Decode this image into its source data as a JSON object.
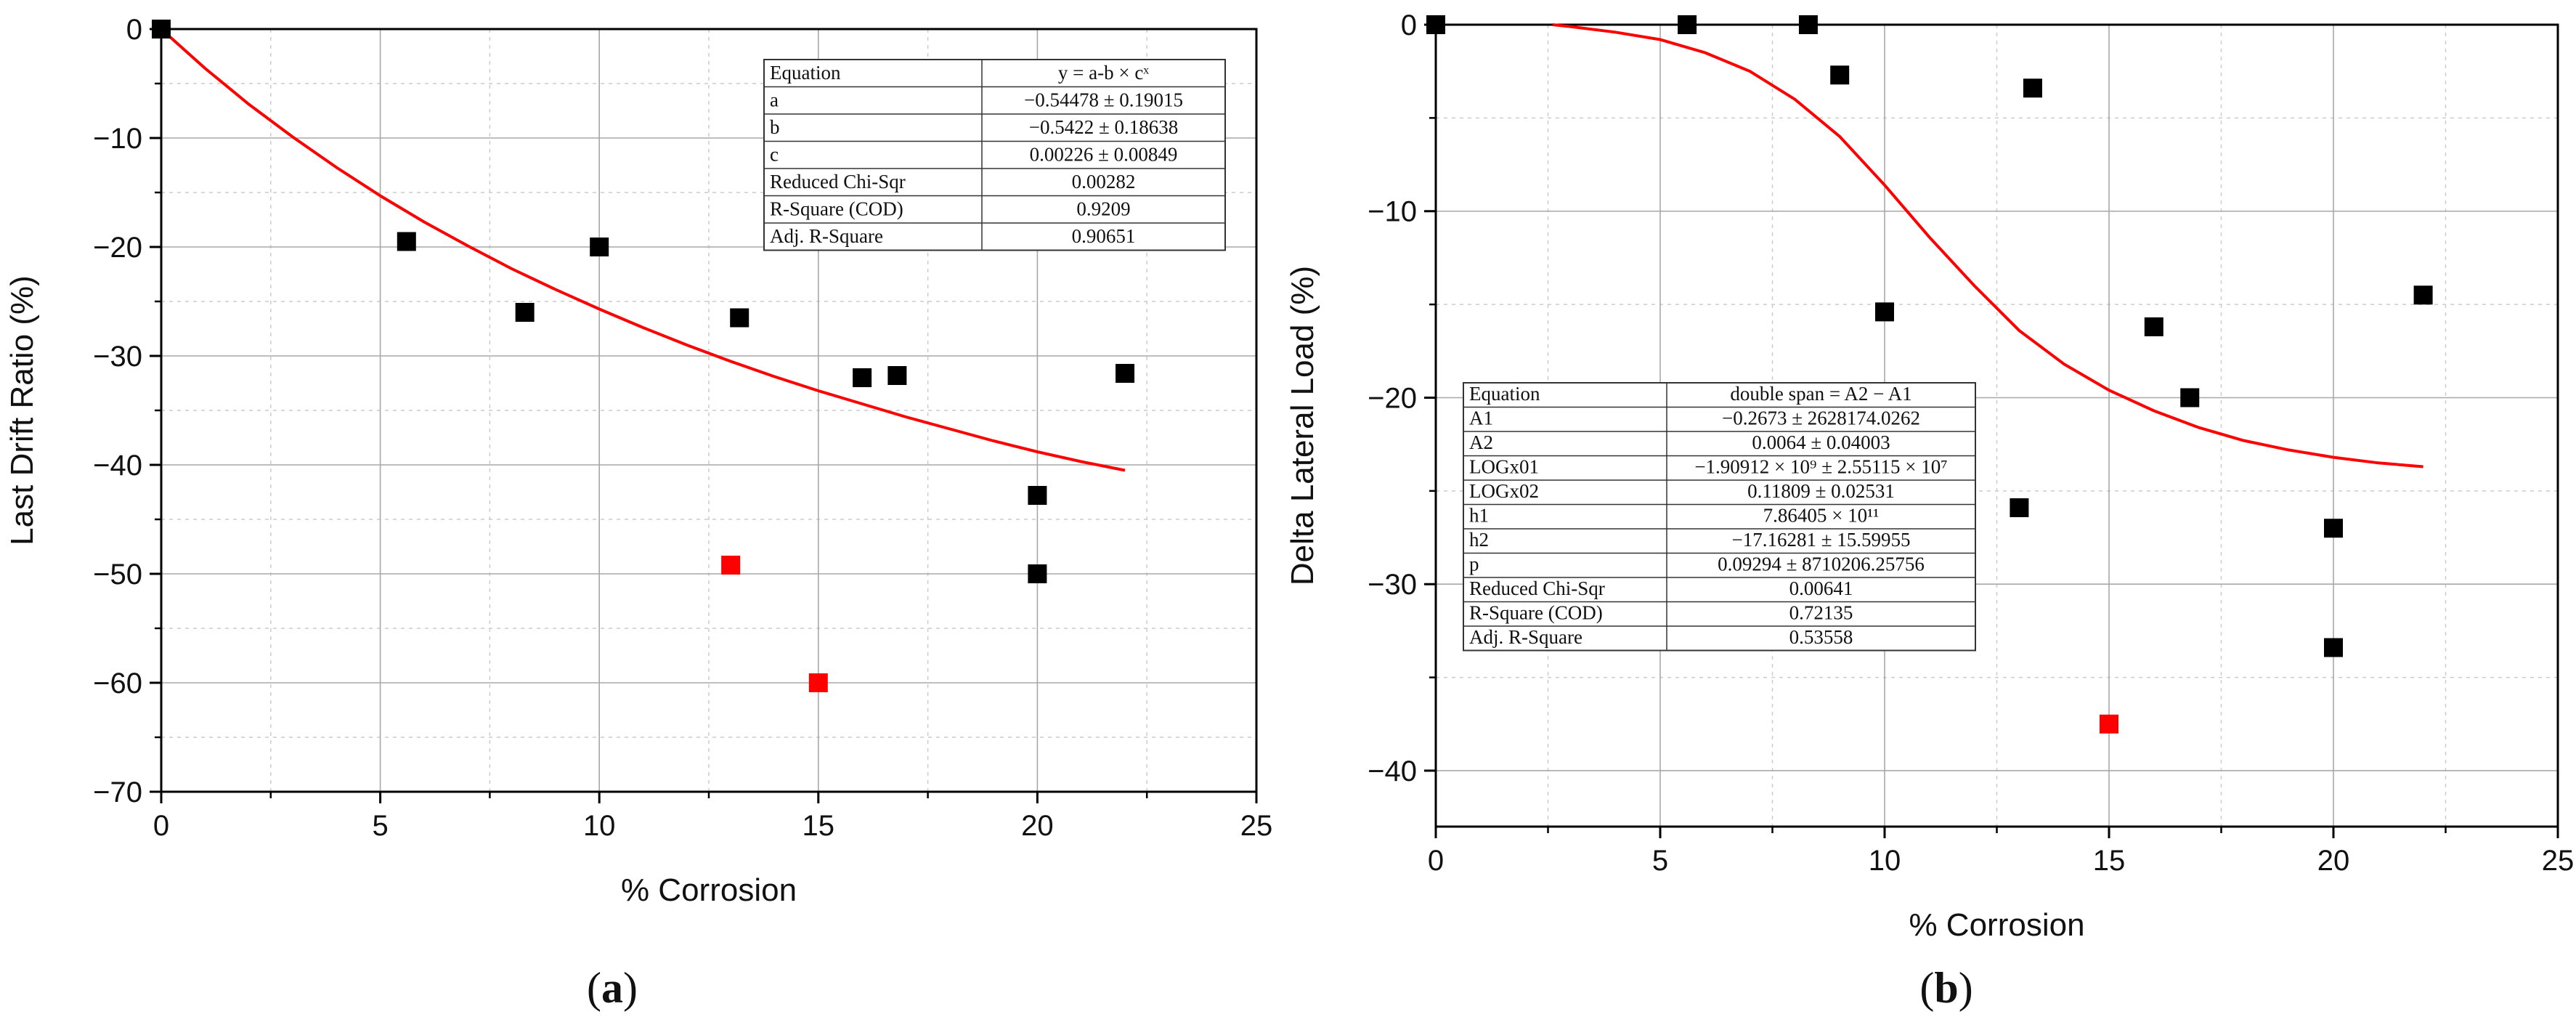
{
  "chart_data": [
    {
      "type": "scatter",
      "panel_label": "a",
      "xlabel": "% Corrosion",
      "ylabel": "Last Drift Ratio (%)",
      "xlim": [
        0,
        25
      ],
      "ylim": [
        -70,
        0
      ],
      "xticks": [
        0,
        5,
        10,
        15,
        20,
        25
      ],
      "yticks": [
        0,
        -10,
        -20,
        -30,
        -40,
        -50,
        -60,
        -70
      ],
      "grid": true,
      "points": [
        {
          "x": 0,
          "y": 0,
          "color": "#000000"
        },
        {
          "x": 5.6,
          "y": -19.5,
          "color": "#000000"
        },
        {
          "x": 8.3,
          "y": -26,
          "color": "#000000"
        },
        {
          "x": 10,
          "y": -20,
          "color": "#000000"
        },
        {
          "x": 13.2,
          "y": -26.5,
          "color": "#000000"
        },
        {
          "x": 16,
          "y": -32,
          "color": "#000000"
        },
        {
          "x": 16.8,
          "y": -31.8,
          "color": "#000000"
        },
        {
          "x": 22,
          "y": -31.6,
          "color": "#000000"
        },
        {
          "x": 20,
          "y": -42.8,
          "color": "#000000"
        },
        {
          "x": 20,
          "y": -50,
          "color": "#000000"
        },
        {
          "x": 13,
          "y": -49.2,
          "color": "#ff0000"
        },
        {
          "x": 15,
          "y": -60,
          "color": "#ff0000"
        }
      ],
      "fit": {
        "color": "#ff0000",
        "x": [
          0,
          1,
          2,
          3,
          4,
          5,
          6,
          7,
          8,
          9,
          10,
          11,
          12,
          13,
          14,
          15,
          16,
          17,
          18,
          19,
          20,
          21,
          22
        ],
        "y": [
          0,
          -3.6,
          -6.9,
          -9.9,
          -12.7,
          -15.3,
          -17.7,
          -19.9,
          -22.0,
          -23.9,
          -25.7,
          -27.4,
          -29.0,
          -30.5,
          -31.9,
          -33.2,
          -34.4,
          -35.6,
          -36.7,
          -37.8,
          -38.8,
          -39.7,
          -40.5
        ]
      },
      "legend_position": "top-right",
      "fit_table": {
        "header": [
          "Equation",
          "y = a-b × cˣ"
        ],
        "rows": [
          [
            "a",
            "−0.54478 ± 0.19015"
          ],
          [
            "b",
            "−0.5422 ± 0.18638"
          ],
          [
            "c",
            "0.00226 ± 0.00849"
          ],
          [
            "Reduced Chi-Sqr",
            "0.00282"
          ],
          [
            "R-Square (COD)",
            "0.9209"
          ],
          [
            "Adj. R-Square",
            "0.90651"
          ]
        ]
      }
    },
    {
      "type": "scatter",
      "panel_label": "b",
      "xlabel": "% Corrosion",
      "ylabel": "Delta Lateral Load (%)",
      "xlim": [
        0,
        25
      ],
      "ylim": [
        -43,
        0
      ],
      "xticks": [
        0,
        5,
        10,
        15,
        20,
        25
      ],
      "yticks": [
        0,
        -10,
        -20,
        -30,
        -40
      ],
      "grid": true,
      "points": [
        {
          "x": 0,
          "y": 0,
          "color": "#000000"
        },
        {
          "x": 5.6,
          "y": 0,
          "color": "#000000"
        },
        {
          "x": 8.3,
          "y": 0,
          "color": "#000000"
        },
        {
          "x": 9,
          "y": -2.7,
          "color": "#000000"
        },
        {
          "x": 13.3,
          "y": -3.4,
          "color": "#000000"
        },
        {
          "x": 10,
          "y": -15.4,
          "color": "#000000"
        },
        {
          "x": 16,
          "y": -16.2,
          "color": "#000000"
        },
        {
          "x": 16.8,
          "y": -20,
          "color": "#000000"
        },
        {
          "x": 22,
          "y": -14.5,
          "color": "#000000"
        },
        {
          "x": 13,
          "y": -25.9,
          "color": "#000000"
        },
        {
          "x": 20,
          "y": -27,
          "color": "#000000"
        },
        {
          "x": 20,
          "y": -33.4,
          "color": "#000000"
        },
        {
          "x": 15,
          "y": -37.5,
          "color": "#ff0000"
        }
      ],
      "fit": {
        "color": "#ff0000",
        "x": [
          2.6,
          3,
          4,
          5,
          6,
          7,
          8,
          9,
          10,
          11,
          12,
          13,
          14,
          15,
          16,
          17,
          18,
          19,
          20,
          21,
          22
        ],
        "y": [
          0,
          -0.1,
          -0.4,
          -0.8,
          -1.5,
          -2.5,
          -4.0,
          -6.0,
          -8.6,
          -11.4,
          -14.0,
          -16.4,
          -18.2,
          -19.6,
          -20.7,
          -21.6,
          -22.3,
          -22.8,
          -23.2,
          -23.5,
          -23.7
        ]
      },
      "legend_position": "bottom-left",
      "fit_table": {
        "header": [
          "Equation",
          "double span = A2 − A1"
        ],
        "rows": [
          [
            "A1",
            "−0.2673 ± 2628174.0262"
          ],
          [
            "A2",
            "0.0064 ± 0.04003"
          ],
          [
            "LOGx01",
            "−1.90912 × 10⁹ ± 2.55115 × 10⁷"
          ],
          [
            "LOGx02",
            "0.11809 ± 0.02531"
          ],
          [
            "h1",
            "7.86405 × 10¹¹"
          ],
          [
            "h2",
            "−17.16281 ± 15.59955"
          ],
          [
            "p",
            "0.09294 ± 8710206.25756"
          ],
          [
            "Reduced Chi-Sqr",
            "0.00641"
          ],
          [
            "R-Square (COD)",
            "0.72135"
          ],
          [
            "Adj. R-Square",
            "0.53558"
          ]
        ]
      }
    }
  ]
}
